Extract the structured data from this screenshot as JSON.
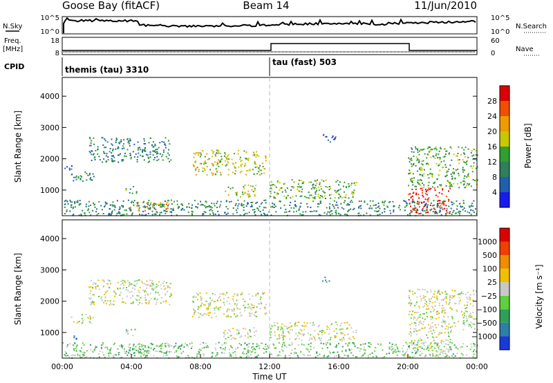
{
  "header": {
    "station": "Goose Bay (fitACF)",
    "beam": "Beam 14",
    "date": "11/Jun/2010"
  },
  "top_panels": {
    "nsky_label": "N.Sky",
    "nsearch_label": "N.Search",
    "freq_label_1": "Freq.",
    "freq_label_2": "[MHz]",
    "nave_label": "Nave",
    "cpid_label": "CPID",
    "nsky_ticks": [
      "10^5",
      "10^0"
    ],
    "nsearch_ticks": [
      "10^5",
      "10^0"
    ],
    "freq_ticks": [
      "18",
      "8"
    ],
    "nave_ticks": [
      "60",
      "0"
    ],
    "cpid_modes": [
      {
        "name": "themis (tau) 3310",
        "start_hour": 0,
        "end_hour": 12
      },
      {
        "name": "tau (fast) 503",
        "start_hour": 12,
        "end_hour": 24
      }
    ]
  },
  "chart_data": [
    {
      "type": "heatmap",
      "panel": "power",
      "xlabel": "",
      "ylabel": "Slant Range [km]",
      "xlim": [
        0,
        24
      ],
      "ylim": [
        180,
        4600
      ],
      "yticks": [
        "1000",
        "2000",
        "3000",
        "4000"
      ],
      "colorbar_label": "Power [dB]",
      "colorbar_ticks": [
        "4",
        "8",
        "12",
        "16",
        "20",
        "24",
        "28"
      ],
      "colorbar_colors": [
        "#1a1aee",
        "#1f5fb0",
        "#2e7f5a",
        "#2f9f2f",
        "#c8c800",
        "#ee9a00",
        "#ee5000",
        "#dd0000"
      ],
      "echo_regions": [
        {
          "t0": 0.5,
          "t1": 1.8,
          "r0": 1300,
          "r1": 1600,
          "level": 2
        },
        {
          "t0": 0.0,
          "t1": 0.6,
          "r0": 1650,
          "r1": 1850,
          "level": 1
        },
        {
          "t0": 1.5,
          "t1": 6.3,
          "r0": 1900,
          "r1": 2700,
          "level": 2
        },
        {
          "t0": 3.6,
          "t1": 4.3,
          "r0": 900,
          "r1": 1150,
          "level": 3
        },
        {
          "t0": 3.8,
          "t1": 6.2,
          "r0": 350,
          "r1": 650,
          "level": 5
        },
        {
          "t0": 7.5,
          "t1": 11.8,
          "r0": 1500,
          "r1": 2300,
          "level": 4
        },
        {
          "t0": 9.3,
          "t1": 11.2,
          "r0": 800,
          "r1": 1200,
          "level": 4
        },
        {
          "t0": 12.0,
          "t1": 17.0,
          "r0": 750,
          "r1": 1350,
          "level": 3
        },
        {
          "t0": 15.0,
          "t1": 15.8,
          "r0": 2550,
          "r1": 2800,
          "level": 1
        },
        {
          "t0": 20.0,
          "t1": 24.0,
          "r0": 1100,
          "r1": 2400,
          "level": 3
        },
        {
          "t0": 20.0,
          "t1": 22.5,
          "r0": 250,
          "r1": 1100,
          "level": 7
        },
        {
          "t0": 0.0,
          "t1": 24.0,
          "r0": 200,
          "r1": 700,
          "level": 2
        }
      ]
    },
    {
      "type": "heatmap",
      "panel": "velocity",
      "xlabel": "Time UT",
      "ylabel": "Slant Range [km]",
      "xlim": [
        0,
        24
      ],
      "ylim": [
        180,
        4600
      ],
      "xticks": [
        "00:00",
        "04:00",
        "08:00",
        "12:00",
        "16:00",
        "20:00",
        "00:00"
      ],
      "yticks": [
        "1000",
        "2000",
        "3000",
        "4000"
      ],
      "colorbar_label": "Velocity [m s⁻¹]",
      "colorbar_ticks": [
        "1000",
        "500",
        "100",
        "25",
        "−25",
        "−100",
        "−500",
        "−1000"
      ],
      "colorbar_colors": [
        "#1a3ad8",
        "#2e7fa8",
        "#2f9f5a",
        "#5fcf3f",
        "#c8c8c8",
        "#f0c000",
        "#f08c00",
        "#f04000",
        "#dd0000"
      ],
      "echo_regions": [
        {
          "t0": 0.5,
          "t1": 1.8,
          "r0": 1300,
          "r1": 1600,
          "level": 4
        },
        {
          "t0": 0.5,
          "t1": 1.0,
          "r0": 750,
          "r1": 950,
          "level": 1
        },
        {
          "t0": 1.5,
          "t1": 6.3,
          "r0": 1900,
          "r1": 2700,
          "level": 4
        },
        {
          "t0": 3.6,
          "t1": 4.3,
          "r0": 900,
          "r1": 1150,
          "level": 3
        },
        {
          "t0": 3.8,
          "t1": 6.2,
          "r0": 350,
          "r1": 650,
          "level": 3
        },
        {
          "t0": 7.5,
          "t1": 11.8,
          "r0": 1500,
          "r1": 2300,
          "level": 4
        },
        {
          "t0": 9.3,
          "t1": 11.2,
          "r0": 800,
          "r1": 1200,
          "level": 4
        },
        {
          "t0": 12.0,
          "t1": 17.0,
          "r0": 750,
          "r1": 1350,
          "level": 4
        },
        {
          "t0": 15.0,
          "t1": 15.8,
          "r0": 2550,
          "r1": 2800,
          "level": 1
        },
        {
          "t0": 20.0,
          "t1": 24.0,
          "r0": 1100,
          "r1": 2400,
          "level": 4
        },
        {
          "t0": 20.0,
          "t1": 22.5,
          "r0": 250,
          "r1": 1100,
          "level": 4
        },
        {
          "t0": 21.5,
          "t1": 22.2,
          "r0": 1600,
          "r1": 1750,
          "level": 6
        },
        {
          "t0": 0.0,
          "t1": 24.0,
          "r0": 200,
          "r1": 700,
          "level": 3
        }
      ]
    }
  ]
}
